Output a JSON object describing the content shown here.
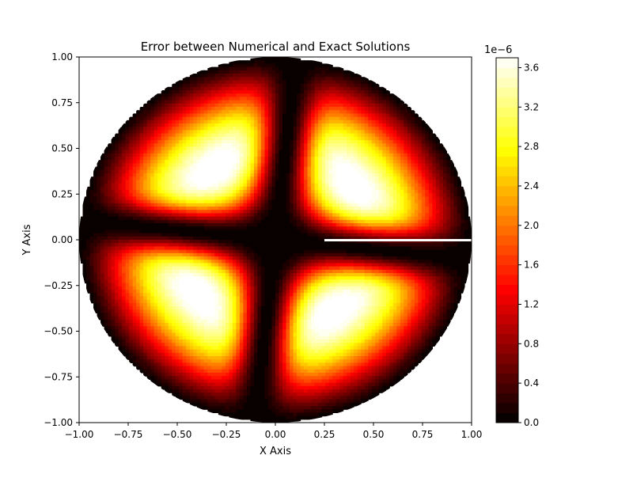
{
  "chart_data": {
    "type": "heatmap",
    "title": "Error between Numerical and Exact Solutions",
    "xlabel": "X Axis",
    "ylabel": "Y Axis",
    "xlim": [
      -1.0,
      1.0
    ],
    "ylim": [
      -1.0,
      1.0
    ],
    "x_ticks": [
      "−1.00",
      "−0.75",
      "−0.50",
      "−0.25",
      "0.00",
      "0.25",
      "0.50",
      "0.75",
      "1.00"
    ],
    "x_tick_values": [
      -1.0,
      -0.75,
      -0.5,
      -0.25,
      0.0,
      0.25,
      0.5,
      0.75,
      1.0
    ],
    "y_ticks": [
      "−1.00",
      "−0.75",
      "−0.50",
      "−0.25",
      "0.00",
      "0.25",
      "0.50",
      "0.75",
      "1.00"
    ],
    "y_tick_values": [
      -1.0,
      -0.75,
      -0.5,
      -0.25,
      0.0,
      0.25,
      0.5,
      0.75,
      1.0
    ],
    "domain": "unit disk",
    "colormap": "hot",
    "colorbar": {
      "label": "",
      "offset_text": "1e−6",
      "min": 0.0,
      "max": 3.7,
      "ticks": [
        "0.0",
        "0.4",
        "0.8",
        "1.2",
        "1.6",
        "2.0",
        "2.4",
        "2.8",
        "3.2",
        "3.6"
      ],
      "tick_values": [
        0.0,
        0.4,
        0.8,
        1.2,
        1.6,
        2.0,
        2.4,
        2.8,
        3.2,
        3.6
      ],
      "levels": 37
    },
    "peaks": [
      {
        "x": -0.28,
        "y": 0.38,
        "value": 3.7
      },
      {
        "x": 0.38,
        "y": 0.25,
        "value": 3.6
      },
      {
        "x": -0.38,
        "y": -0.25,
        "value": 3.6
      },
      {
        "x": 0.25,
        "y": -0.38,
        "value": 3.7
      }
    ],
    "zero_lines": [
      {
        "name": "near-vertical",
        "angle_deg": 84
      },
      {
        "name": "near-horizontal",
        "angle_deg": -6
      }
    ],
    "grid": false,
    "legend": "none"
  }
}
